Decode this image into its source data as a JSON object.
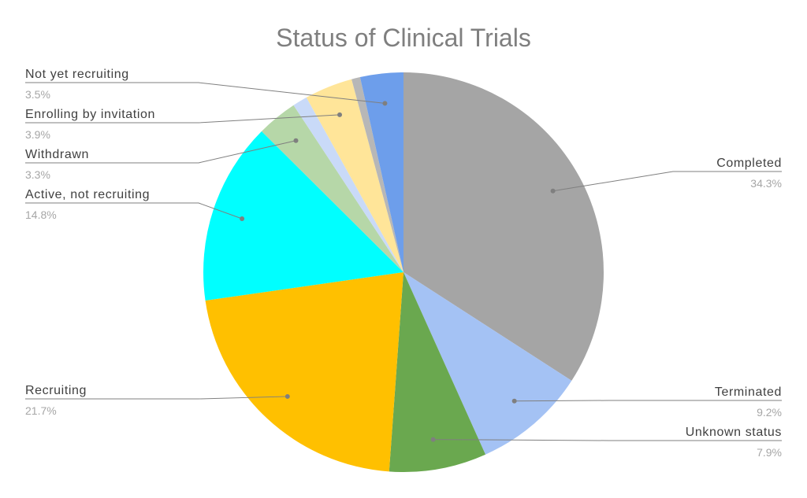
{
  "chart_data": {
    "type": "pie",
    "title": "Status of Clinical Trials",
    "slices": [
      {
        "label": "Completed",
        "value_label": "34.3%",
        "value": 34.3,
        "color": "#a5a5a5"
      },
      {
        "label": "Terminated",
        "value_label": "9.2%",
        "value": 9.2,
        "color": "#a4c2f4"
      },
      {
        "label": "Unknown status",
        "value_label": "7.9%",
        "value": 7.9,
        "color": "#6aa84f"
      },
      {
        "label": "Recruiting",
        "value_label": "21.7%",
        "value": 21.7,
        "color": "#ffc000"
      },
      {
        "label": "Active, not recruiting",
        "value_label": "14.8%",
        "value": 14.8,
        "color": "#00ffff"
      },
      {
        "label": "Withdrawn",
        "value_label": "3.3%",
        "value": 3.3,
        "color": "#b6d7a8"
      },
      {
        "label": "",
        "value_label": "",
        "value": 1.2,
        "color": "#c9daf8"
      },
      {
        "label": "Enrolling by invitation",
        "value_label": "3.9%",
        "value": 3.9,
        "color": "#ffe599"
      },
      {
        "label": "",
        "value_label": "",
        "value": 0.7,
        "color": "#b7b7b7"
      },
      {
        "label": "Not yet recruiting",
        "value_label": "3.5%",
        "value": 3.5,
        "color": "#6d9eeb"
      }
    ]
  }
}
